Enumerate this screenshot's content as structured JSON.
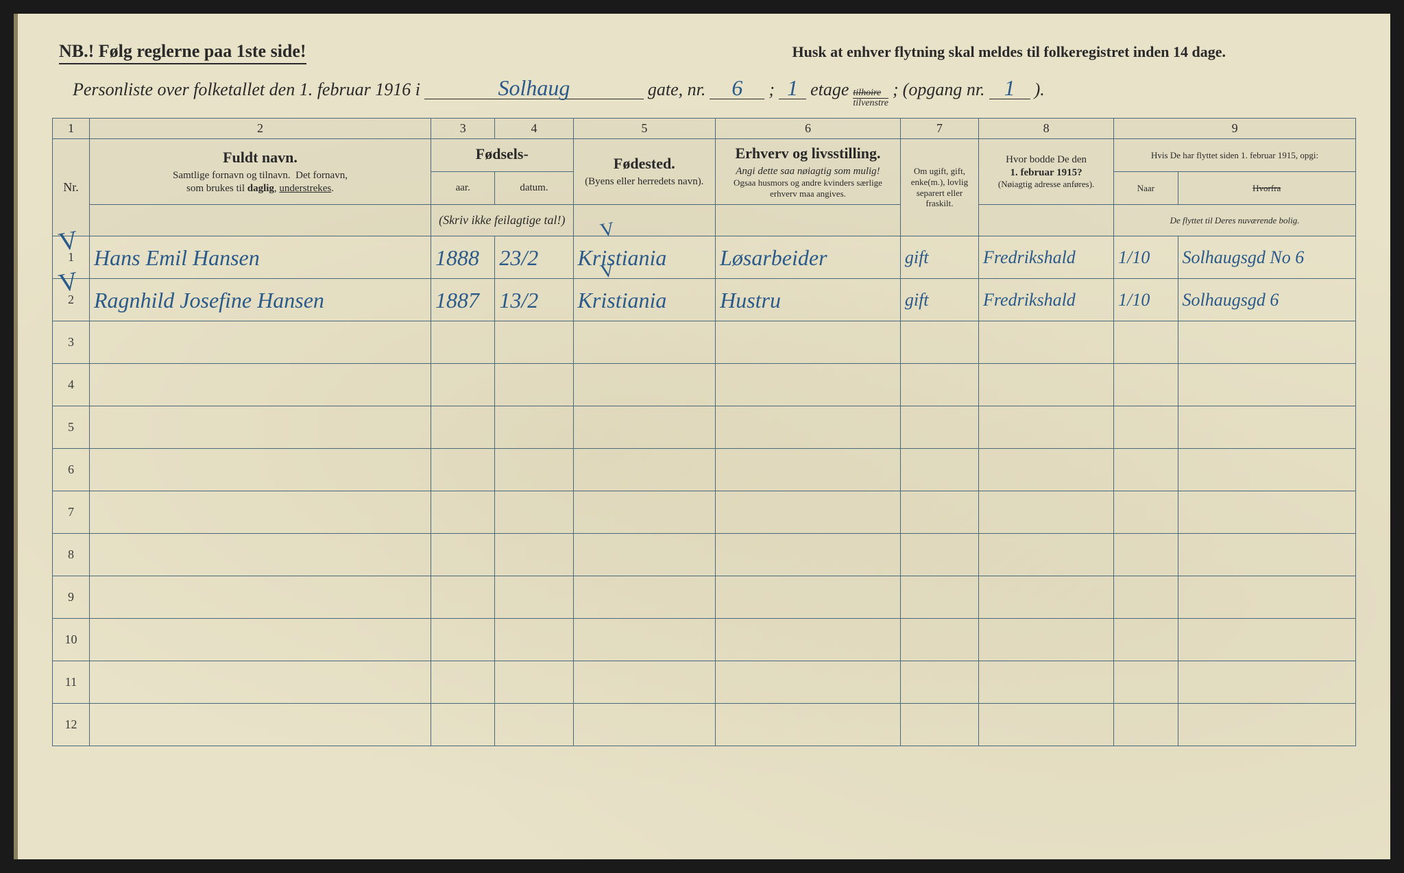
{
  "header": {
    "nb": "NB.! Følg reglerne paa 1ste side!",
    "reminder": "Husk at enhver flytning skal meldes til folkeregistret inden 14 dage.",
    "lead": "Personliste over folketallet den 1. februar 1916 i",
    "street": "Solhaug",
    "gate_label": "gate, nr.",
    "gate_nr": "6",
    "semicolon": ";",
    "etage_val": "1",
    "etage_label": "etage",
    "side_top": "tilhoire",
    "side_bottom": "tilvenstre",
    "opgang_label": "(opgang nr.",
    "opgang_val": "1",
    "close": ")."
  },
  "columns": {
    "nums": [
      "1",
      "2",
      "3",
      "4",
      "5",
      "6",
      "7",
      "8",
      "9"
    ],
    "nr": "Nr.",
    "name_main": "Fuldt navn.",
    "name_sub": "Samlige fornavn og tilnavn.  Det fornavn, som brukes til daglig, understrekes.",
    "birth_main": "Fødsels-",
    "birth_year": "aar.",
    "birth_date": "datum.",
    "birth_note": "(Skriv ikke feilagtige tal!)",
    "place_main": "Fødested.",
    "place_sub": "(Byens eller herredets navn).",
    "occ_main": "Erhverv og livsstilling.",
    "occ_sub1": "Angi dette saa nøiagtig som mulig!",
    "occ_sub2": "Ogsaa husmors og andre kvinders særlige erhverv maa angives.",
    "marital": "Om ugift, gift, enke(m.), lovlig separert eller fraskilt.",
    "prev_main": "Hvor bodde De den 1. februar 1915?",
    "prev_sub": "(Nøiagtig adresse anføres).",
    "moved_main": "Hvis De har flyttet siden 1. februar 1915, opgi:",
    "moved_naar": "Naar",
    "moved_hvorfra": "Hvorfra",
    "moved_sub": "De flyttet til Deres nuværende bolig."
  },
  "rows": [
    {
      "nr": "1",
      "name": "Hans Emil Hansen",
      "year": "1888",
      "date": "23/2",
      "place": "Kristiania",
      "occ": "Løsarbeider",
      "mar": "gift",
      "prev": "Fredrikshald",
      "naar": "1/10",
      "hvor": "Solhaugsgd No 6"
    },
    {
      "nr": "2",
      "name": "Ragnhild Josefine Hansen",
      "year": "1887",
      "date": "13/2",
      "place": "Kristiania",
      "occ": "Hustru",
      "mar": "gift",
      "prev": "Fredrikshald",
      "naar": "1/10",
      "hvor": "Solhaugsgd 6"
    },
    {
      "nr": "3"
    },
    {
      "nr": "4"
    },
    {
      "nr": "5"
    },
    {
      "nr": "6"
    },
    {
      "nr": "7"
    },
    {
      "nr": "8"
    },
    {
      "nr": "9"
    },
    {
      "nr": "10"
    },
    {
      "nr": "11"
    },
    {
      "nr": "12"
    }
  ]
}
